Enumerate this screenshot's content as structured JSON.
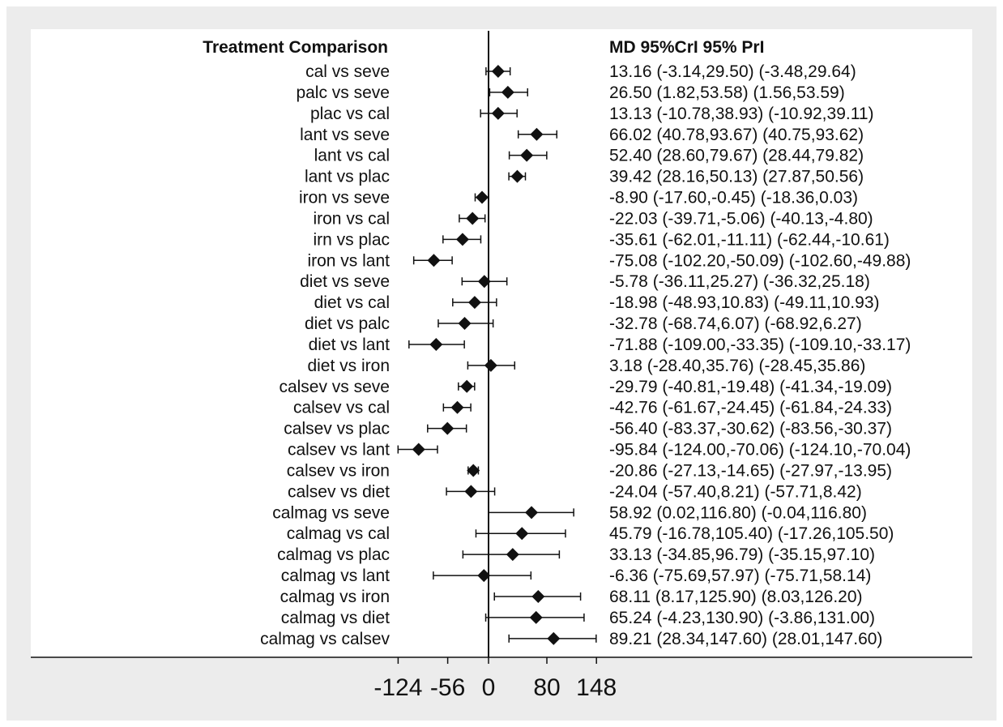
{
  "chart_data": {
    "type": "forest",
    "left_header": "Treatment Comparison",
    "right_header": "MD 95%CrI 95% PrI",
    "x_ticks": [
      -124,
      -56,
      0,
      80,
      148
    ],
    "x_tick_labels": [
      "-124",
      "-56",
      "0",
      "80",
      "148"
    ],
    "reference_line": 0,
    "rows": [
      {
        "label": "cal vs seve",
        "md": 13.16,
        "ci": [
          -3.14,
          29.5
        ],
        "pi": [
          -3.48,
          29.64
        ],
        "text": "13.16 (-3.14,29.50)  (-3.48,29.64)"
      },
      {
        "label": "palc vs seve",
        "md": 26.5,
        "ci": [
          1.82,
          53.58
        ],
        "pi": [
          1.56,
          53.59
        ],
        "text": "26.50 (1.82,53.58)  (1.56,53.59)"
      },
      {
        "label": "plac vs cal",
        "md": 13.13,
        "ci": [
          -10.78,
          38.93
        ],
        "pi": [
          -10.92,
          39.11
        ],
        "text": "13.13 (-10.78,38.93)  (-10.92,39.11)"
      },
      {
        "label": "lant vs seve",
        "md": 66.02,
        "ci": [
          40.78,
          93.67
        ],
        "pi": [
          40.75,
          93.62
        ],
        "text": "66.02 (40.78,93.67)  (40.75,93.62)"
      },
      {
        "label": "lant  vs cal",
        "md": 52.4,
        "ci": [
          28.6,
          79.67
        ],
        "pi": [
          28.44,
          79.82
        ],
        "text": "52.40 (28.60,79.67)  (28.44,79.82)"
      },
      {
        "label": "lant vs plac",
        "md": 39.42,
        "ci": [
          28.16,
          50.13
        ],
        "pi": [
          27.87,
          50.56
        ],
        "text": "39.42 (28.16,50.13)  (27.87,50.56)"
      },
      {
        "label": "iron vs seve",
        "md": -8.9,
        "ci": [
          -17.6,
          -0.45
        ],
        "pi": [
          -18.36,
          0.03
        ],
        "text": "-8.90 (-17.60,-0.45)  (-18.36,0.03)"
      },
      {
        "label": "iron vs cal",
        "md": -22.03,
        "ci": [
          -39.71,
          -5.06
        ],
        "pi": [
          -40.13,
          -4.8
        ],
        "text": "-22.03 (-39.71,-5.06)  (-40.13,-4.80)"
      },
      {
        "label": "irn vs plac",
        "md": -35.61,
        "ci": [
          -62.01,
          -11.11
        ],
        "pi": [
          -62.44,
          -10.61
        ],
        "text": "-35.61 (-62.01,-11.11)  (-62.44,-10.61)"
      },
      {
        "label": "iron vs lant",
        "md": -75.08,
        "ci": [
          -102.2,
          -50.09
        ],
        "pi": [
          -102.6,
          -49.88
        ],
        "text": "-75.08 (-102.20,-50.09)  (-102.60,-49.88)"
      },
      {
        "label": "diet vs seve",
        "md": -5.78,
        "ci": [
          -36.11,
          25.27
        ],
        "pi": [
          -36.32,
          25.18
        ],
        "text": "-5.78 (-36.11,25.27)  (-36.32,25.18)"
      },
      {
        "label": "diet vs cal",
        "md": -18.98,
        "ci": [
          -48.93,
          10.83
        ],
        "pi": [
          -49.11,
          10.93
        ],
        "text": "-18.98 (-48.93,10.83)  (-49.11,10.93)"
      },
      {
        "label": "diet vs palc",
        "md": -32.78,
        "ci": [
          -68.74,
          6.07
        ],
        "pi": [
          -68.92,
          6.27
        ],
        "text": "-32.78 (-68.74,6.07)  (-68.92,6.27)"
      },
      {
        "label": "diet vs lant",
        "md": -71.88,
        "ci": [
          -109.0,
          -33.35
        ],
        "pi": [
          -109.1,
          -33.17
        ],
        "text": "-71.88 (-109.00,-33.35)  (-109.10,-33.17)"
      },
      {
        "label": "diet vs iron",
        "md": 3.18,
        "ci": [
          -28.4,
          35.76
        ],
        "pi": [
          -28.45,
          35.86
        ],
        "text": "3.18 (-28.40,35.76)  (-28.45,35.86)"
      },
      {
        "label": "calsev vs seve",
        "md": -29.79,
        "ci": [
          -40.81,
          -19.48
        ],
        "pi": [
          -41.34,
          -19.09
        ],
        "text": "-29.79 (-40.81,-19.48)  (-41.34,-19.09)"
      },
      {
        "label": "calsev vs cal",
        "md": -42.76,
        "ci": [
          -61.67,
          -24.45
        ],
        "pi": [
          -61.84,
          -24.33
        ],
        "text": "-42.76 (-61.67,-24.45)  (-61.84,-24.33)"
      },
      {
        "label": "calsev vs plac",
        "md": -56.4,
        "ci": [
          -83.37,
          -30.62
        ],
        "pi": [
          -83.56,
          -30.37
        ],
        "text": "-56.40 (-83.37,-30.62)  (-83.56,-30.37)"
      },
      {
        "label": "calsev vs lant",
        "md": -95.84,
        "ci": [
          -124.0,
          -70.06
        ],
        "pi": [
          -124.1,
          -70.04
        ],
        "text": "-95.84 (-124.00,-70.06)  (-124.10,-70.04)"
      },
      {
        "label": "calsev vs iron",
        "md": -20.86,
        "ci": [
          -27.13,
          -14.65
        ],
        "pi": [
          -27.97,
          -13.95
        ],
        "text": "-20.86 (-27.13,-14.65)  (-27.97,-13.95)"
      },
      {
        "label": "calsev vs diet",
        "md": -24.04,
        "ci": [
          -57.4,
          8.21
        ],
        "pi": [
          -57.71,
          8.42
        ],
        "text": "-24.04 (-57.40,8.21)  (-57.71,8.42)"
      },
      {
        "label": "calmag vs seve",
        "md": 58.92,
        "ci": [
          0.02,
          116.8
        ],
        "pi": [
          -0.04,
          116.8
        ],
        "text": "58.92 (0.02,116.80)  (-0.04,116.80)"
      },
      {
        "label": "calmag vs cal",
        "md": 45.79,
        "ci": [
          -16.78,
          105.4
        ],
        "pi": [
          -17.26,
          105.5
        ],
        "text": "45.79 (-16.78,105.40)  (-17.26,105.50)"
      },
      {
        "label": "calmag vs plac",
        "md": 33.13,
        "ci": [
          -34.85,
          96.79
        ],
        "pi": [
          -35.15,
          97.1
        ],
        "text": "33.13 (-34.85,96.79)  (-35.15,97.10)"
      },
      {
        "label": "calmag vs lant",
        "md": -6.36,
        "ci": [
          -75.69,
          57.97
        ],
        "pi": [
          -75.71,
          58.14
        ],
        "text": "-6.36 (-75.69,57.97)  (-75.71,58.14)"
      },
      {
        "label": "calmag vs iron",
        "md": 68.11,
        "ci": [
          8.17,
          125.9
        ],
        "pi": [
          8.03,
          126.2
        ],
        "text": "68.11 (8.17,125.90)  (8.03,126.20)"
      },
      {
        "label": "calmag vs diet",
        "md": 65.24,
        "ci": [
          -4.23,
          130.9
        ],
        "pi": [
          -3.86,
          131.0
        ],
        "text": "65.24 (-4.23,130.90)  (-3.86,131.00)"
      },
      {
        "label": "calmag vs calsev",
        "md": 89.21,
        "ci": [
          28.34,
          147.6
        ],
        "pi": [
          28.01,
          147.6
        ],
        "text": "89.21 (28.34,147.60)  (28.01,147.60)"
      }
    ],
    "colors": {
      "background": "#ececec",
      "plot": "#ffffff",
      "ink": "#111111"
    }
  }
}
